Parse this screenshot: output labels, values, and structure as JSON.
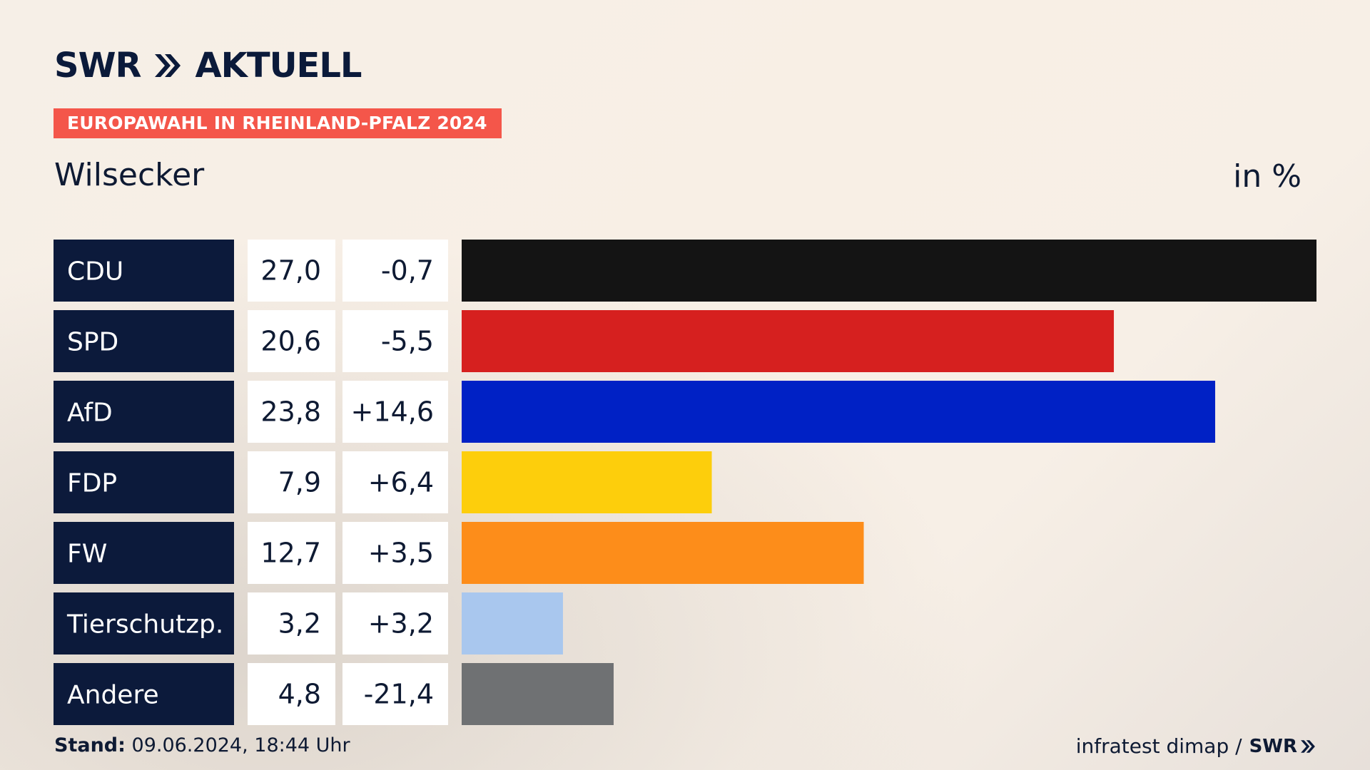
{
  "header": {
    "brand_left": "SWR",
    "brand_right": "AKTUELL",
    "tag": "EUROPAWAHL IN RHEINLAND-PFALZ 2024",
    "place": "Wilsecker",
    "unit": "in %"
  },
  "colors": {
    "label_bg": "#0c1a3b",
    "value_bg": "#ffffff",
    "tag_bg": "#f4564a"
  },
  "chart_data": {
    "type": "bar",
    "orientation": "horizontal",
    "title": "Wilsecker",
    "xlabel": "",
    "ylabel": "",
    "unit": "in %",
    "xlim": [
      0,
      27.0
    ],
    "categories": [
      "CDU",
      "SPD",
      "AfD",
      "FDP",
      "FW",
      "Tierschutzp.",
      "Andere"
    ],
    "values": [
      27.0,
      20.6,
      23.8,
      7.9,
      12.7,
      3.2,
      4.8
    ],
    "value_labels": [
      "27,0",
      "20,6",
      "23,8",
      "7,9",
      "12,7",
      "3,2",
      "4,8"
    ],
    "change_labels": [
      "-0,7",
      "-5,5",
      "+14,6",
      "+6,4",
      "+3,5",
      "+3,2",
      "-21,4"
    ],
    "changes": [
      -0.7,
      -5.5,
      14.6,
      6.4,
      3.5,
      3.2,
      -21.4
    ],
    "bar_colors": [
      "#141414",
      "#d6201f",
      "#0021c5",
      "#fdce0c",
      "#fd8d1a",
      "#a9c7ee",
      "#6f7173"
    ]
  },
  "footer": {
    "stand_label": "Stand:",
    "stand_value": "09.06.2024, 18:44 Uhr",
    "source": "infratest dimap /",
    "source_brand": "SWR"
  }
}
